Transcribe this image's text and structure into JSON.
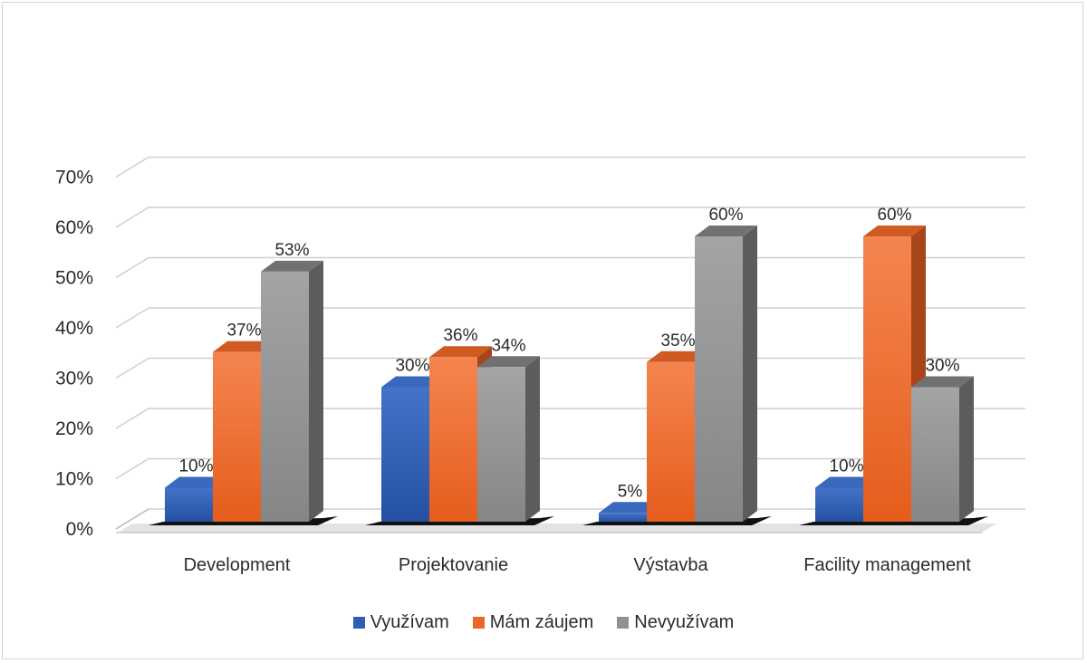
{
  "chart_data": {
    "type": "bar",
    "style": "3d-clustered-column",
    "categories": [
      "Development",
      "Projektovanie",
      "Výstavba",
      "Facility management"
    ],
    "series": [
      {
        "name": "Využívam",
        "values": [
          10,
          30,
          5,
          10
        ],
        "labels": [
          "10%",
          "30%",
          "5%",
          "10%"
        ],
        "color": "#2f5fb3"
      },
      {
        "name": "Mám záujem",
        "values": [
          37,
          36,
          35,
          60
        ],
        "labels": [
          "37%",
          "36%",
          "35%",
          "60%"
        ],
        "color": "#ec6627"
      },
      {
        "name": "Nevyužívam",
        "values": [
          53,
          34,
          60,
          30
        ],
        "labels": [
          "53%",
          "34%",
          "60%",
          "30%"
        ],
        "color": "#8f9193"
      }
    ],
    "y_ticks": [
      "0%",
      "10%",
      "20%",
      "30%",
      "40%",
      "50%",
      "60%",
      "70%"
    ],
    "ylim": [
      0,
      70
    ],
    "grid": true,
    "legend_position": "bottom"
  }
}
